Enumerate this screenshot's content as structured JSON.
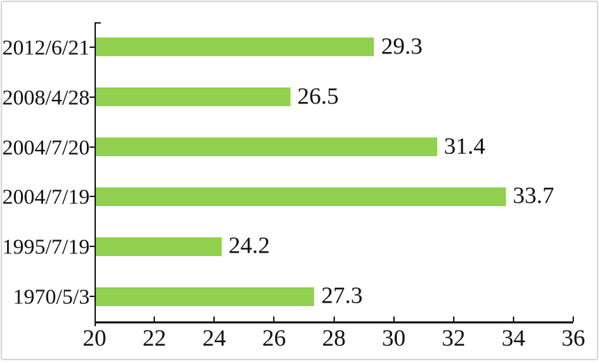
{
  "chart_data": {
    "type": "bar",
    "orientation": "horizontal",
    "title": "",
    "xlabel": "",
    "ylabel": "",
    "categories": [
      "2012/6/21",
      "2008/4/28",
      "2004/7/20",
      "2004/7/19",
      "1995/7/19",
      "1970/5/3"
    ],
    "values": [
      29.3,
      26.5,
      31.4,
      33.7,
      24.2,
      27.3
    ],
    "data_labels": [
      "29.3",
      "26.5",
      "31.4",
      "33.7",
      "24.2",
      "27.3"
    ],
    "xlim": [
      20,
      36
    ],
    "x_ticks": [
      20,
      22,
      24,
      26,
      28,
      30,
      32,
      34,
      36
    ],
    "grid": false,
    "legend": false,
    "bar_color": "#92D050",
    "axis_color": "#1a1a1a",
    "text_color": "#111111",
    "frame_border_color": "#d6d6d6",
    "background_color": "#ffffff"
  }
}
